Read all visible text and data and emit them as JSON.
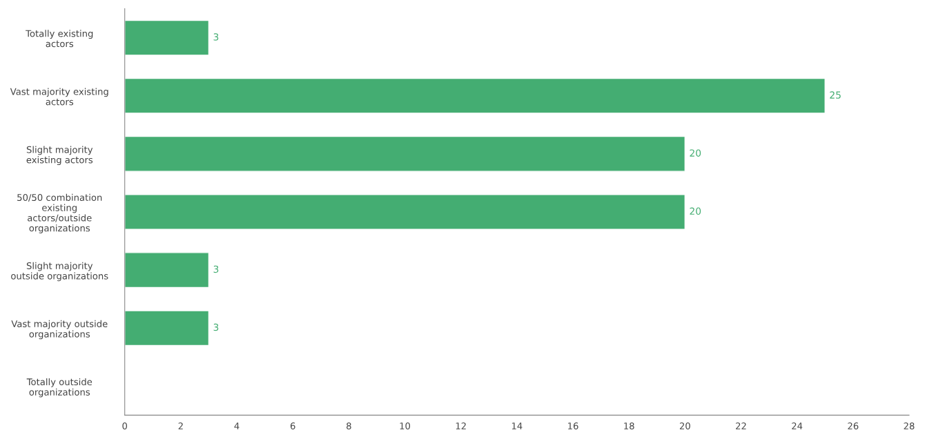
{
  "chart_data": {
    "type": "bar",
    "orientation": "horizontal",
    "categories": [
      "Totally existing\nactors",
      "Vast majority existing\nactors",
      "Slight majority\nexisting actors",
      "50/50 combination\nexisting\nactors/outside\norganizations",
      "Slight majority\noutside organizations",
      "Vast majority outside\norganizations",
      "Totally outside\norganizations"
    ],
    "values": [
      3,
      25,
      20,
      20,
      3,
      3,
      null
    ],
    "value_labels": [
      "3",
      "25",
      "20",
      "20",
      "3",
      "3",
      null
    ],
    "color": "#44ad72",
    "xlim": [
      0,
      28
    ],
    "xticks": [
      0,
      2,
      4,
      6,
      8,
      10,
      12,
      14,
      16,
      18,
      20,
      22,
      24,
      26,
      28
    ],
    "grid": false
  }
}
